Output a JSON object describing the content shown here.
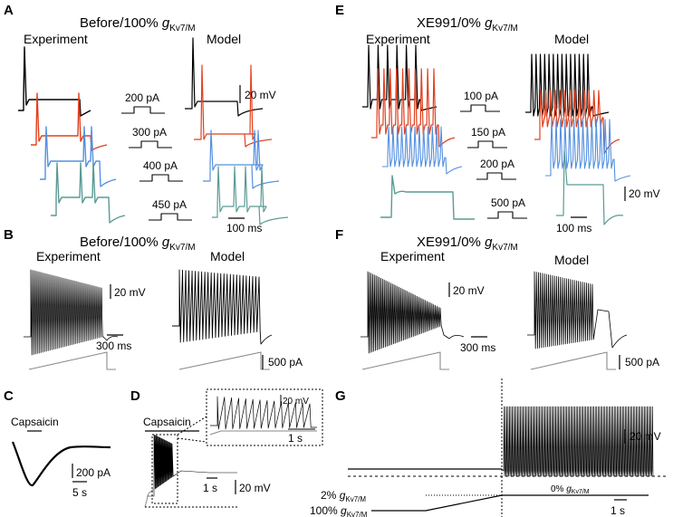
{
  "panels": {
    "A": {
      "label": "A",
      "title_main": "Before/100% ",
      "title_g": "g",
      "title_sub": "Kv7/M",
      "experiment_label": "Experiment",
      "model_label": "Model",
      "currents": [
        "200 pA",
        "300 pA",
        "400 pA",
        "450 pA"
      ],
      "scale_voltage": "20 mV",
      "scale_time": "100 ms"
    },
    "B": {
      "label": "B",
      "title_main": "Before/100% ",
      "title_g": "g",
      "title_sub": "Kv7/M",
      "experiment_label": "Experiment",
      "model_label": "Model",
      "scale_voltage": "20 mV",
      "scale_time": "300 ms",
      "scale_current": "500 pA"
    },
    "C": {
      "label": "C",
      "drug_label": "Capsaicin",
      "scale_current": "200 pA",
      "scale_time": "5 s"
    },
    "D": {
      "label": "D",
      "drug_label": "Capsaicin",
      "inset_scale_voltage": "20 mV",
      "inset_scale_time": "1 s",
      "scale_time": "1 s",
      "scale_voltage": "20 mV"
    },
    "E": {
      "label": "E",
      "title_main": "XE991/0% ",
      "title_g": "g",
      "title_sub": "Kv7/M",
      "experiment_label": "Experiment",
      "model_label": "Model",
      "currents": [
        "100 pA",
        "150 pA",
        "200 pA",
        "500 pA"
      ],
      "scale_voltage": "20 mV",
      "scale_time": "100 ms"
    },
    "F": {
      "label": "F",
      "title_main": "XE991/0% ",
      "title_g": "g",
      "title_sub": "Kv7/M",
      "experiment_label": "Experiment",
      "model_label": "Model",
      "scale_voltage": "20 mV",
      "scale_time": "300 ms",
      "scale_current": "500 pA"
    },
    "G": {
      "label": "G",
      "scale_voltage": "20 mV",
      "scale_time": "1 s",
      "level_2_pct": "2% ",
      "level_100_pct": "100% ",
      "level_0_pct": "0% ",
      "g": "g",
      "sub": "Kv7/M"
    }
  },
  "colors": {
    "black": "#000000",
    "red": "#e0401e",
    "blue": "#5590e0",
    "teal": "#5a9b94",
    "gray": "#8a8a8a"
  }
}
